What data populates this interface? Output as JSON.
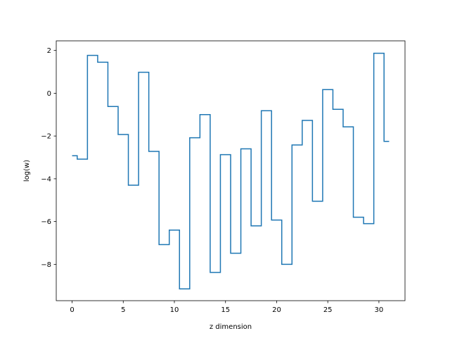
{
  "chart_data": {
    "type": "line",
    "drawstyle": "steps-mid",
    "title": "",
    "xlabel": "z dimension",
    "ylabel": "log(w)",
    "xlim": [
      -1.55,
      32.55
    ],
    "ylim": [
      -9.7,
      2.45
    ],
    "xticks": [
      0,
      5,
      10,
      15,
      20,
      25,
      30
    ],
    "xtick_labels": [
      "0",
      "5",
      "10",
      "15",
      "20",
      "25",
      "30"
    ],
    "yticks": [
      -8,
      -6,
      -4,
      -2,
      0,
      2
    ],
    "ytick_labels": [
      "−8",
      "−6",
      "−4",
      "−2",
      "0",
      "2"
    ],
    "grid": false,
    "legend": "none",
    "series": [
      {
        "color": "#1f77b4",
        "x": [
          0,
          1,
          2,
          3,
          4,
          5,
          6,
          7,
          8,
          9,
          10,
          11,
          12,
          13,
          14,
          15,
          16,
          17,
          18,
          19,
          20,
          21,
          22,
          23,
          24,
          25,
          26,
          27,
          28,
          29,
          30,
          31
        ],
        "values": [
          -2.92,
          -3.08,
          1.77,
          1.45,
          -0.62,
          -1.93,
          -4.3,
          0.98,
          -2.72,
          -7.08,
          -6.4,
          -9.15,
          -2.08,
          -1.0,
          -8.38,
          -2.87,
          -7.48,
          -2.6,
          -6.2,
          -0.82,
          -5.93,
          -8.0,
          -2.42,
          -1.27,
          -5.05,
          0.17,
          -0.75,
          -1.57,
          -5.8,
          -6.1,
          1.87,
          -2.25
        ]
      }
    ]
  }
}
